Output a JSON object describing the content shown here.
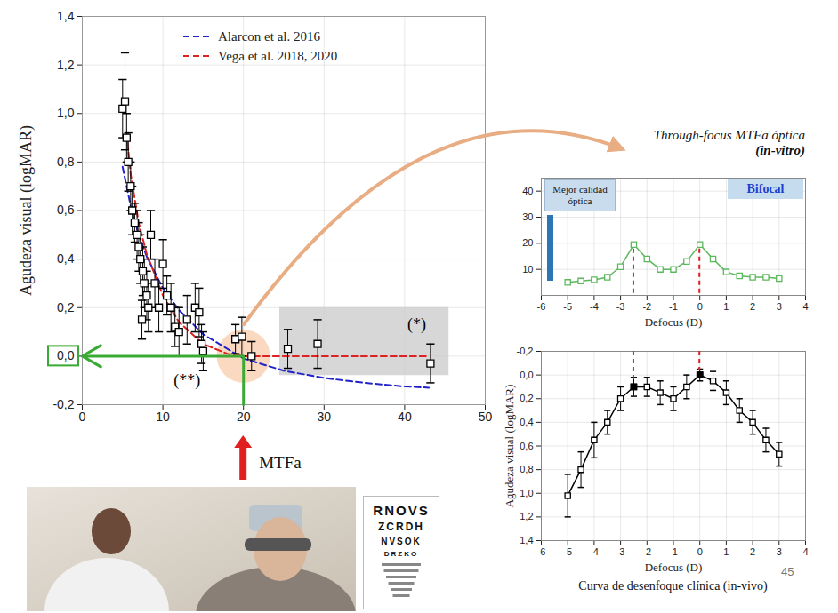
{
  "chart_data": [
    {
      "type": "scatter",
      "ylabel": "Agudeza visual (logMAR)",
      "xlabel": "MTFa",
      "xlim": [
        0,
        50
      ],
      "xticks": [
        0,
        10,
        20,
        30,
        40,
        50
      ],
      "ylim": [
        -0.2,
        1.4
      ],
      "yticks": [
        {
          "value": -0.2,
          "label": "-0,2"
        },
        {
          "value": 0,
          "label": "0,0"
        },
        {
          "value": 0.2,
          "label": "0,2"
        },
        {
          "value": 0.4,
          "label": "0,4"
        },
        {
          "value": 0.6,
          "label": "0,6"
        },
        {
          "value": 0.8,
          "label": "0,8"
        },
        {
          "value": 1.0,
          "label": "1,0"
        },
        {
          "value": 1.2,
          "label": "1,2"
        },
        {
          "value": 1.4,
          "label": "1,4"
        }
      ],
      "grid": true,
      "legend": "top",
      "series": [
        {
          "name": "Alarcon et al. 2016",
          "type": "line",
          "color": "#2222cc",
          "line_style": "dashed",
          "x": [
            5,
            6,
            7,
            8,
            10,
            12,
            15,
            20,
            25,
            30,
            35,
            40,
            43
          ],
          "values": [
            0.78,
            0.62,
            0.5,
            0.41,
            0.28,
            0.19,
            0.09,
            -0.01,
            -0.06,
            -0.09,
            -0.11,
            -0.125,
            -0.13
          ]
        },
        {
          "name": "Vega et al. 2018, 2020",
          "type": "line",
          "color": "#dd2222",
          "line_style": "dashed",
          "x": [
            5.5,
            6,
            7,
            8,
            10,
            12,
            15,
            18,
            20,
            25,
            30,
            35,
            43
          ],
          "values": [
            0.92,
            0.75,
            0.55,
            0.42,
            0.25,
            0.14,
            0.05,
            0.01,
            0,
            0,
            0,
            0,
            0
          ]
        },
        {
          "type": "scatter",
          "color": "#000000",
          "marker": "square",
          "x": [
            5,
            5.3,
            5.5,
            5.7,
            6,
            6.2,
            6.5,
            6.8,
            7,
            7.2,
            7.4,
            7.5,
            7.7,
            8,
            8.2,
            8.5,
            9,
            9.5,
            10,
            10.5,
            11,
            11.5,
            12,
            13,
            14,
            14.5,
            14.8,
            15,
            19,
            19.8,
            21,
            25.5,
            29.2,
            43.2
          ],
          "values": [
            1.02,
            1.05,
            0.9,
            0.8,
            0.7,
            0.6,
            0.55,
            0.5,
            0.45,
            0.4,
            0.15,
            0.35,
            0.3,
            0.25,
            0.2,
            0.5,
            0.3,
            0.2,
            0.38,
            0.25,
            0.2,
            0.12,
            0.1,
            0.15,
            0.2,
            0.18,
            0.05,
            0.02,
            0.07,
            0.08,
            0.0,
            0.03,
            0.05,
            -0.03
          ],
          "errors": [
            0.12,
            0.2,
            0.1,
            0.12,
            0.1,
            0.1,
            0.08,
            0.1,
            0.1,
            0.1,
            0.08,
            0.1,
            0.1,
            0.1,
            0.1,
            0.1,
            0.1,
            0.1,
            0.1,
            0.08,
            0.1,
            0.08,
            0.1,
            0.1,
            0.1,
            0.1,
            0.08,
            0.08,
            0.06,
            0.08,
            0.06,
            0.08,
            0.1,
            0.08
          ]
        }
      ],
      "reference_point": {
        "x": 20,
        "y": 0
      },
      "shaded_region": {
        "x": [
          24.5,
          45.5
        ],
        "y": [
          -0.08,
          0.2
        ]
      },
      "annotations": [
        {
          "text": "(**)",
          "x": 13,
          "y": -0.1
        },
        {
          "text": "(*)",
          "x": 41.5,
          "y": 0.13
        }
      ]
    },
    {
      "type": "line",
      "title": "Through-focus MTFa óptica",
      "subtitle": "(in-vitro)",
      "xlabel": "Defocus (D)",
      "xlim": [
        -6,
        4
      ],
      "xticks": [
        -6,
        -5,
        -4,
        -3,
        -2,
        -1,
        0,
        1,
        2,
        3,
        4
      ],
      "ylim": [
        0,
        45
      ],
      "yticks": [
        10,
        20,
        30,
        40
      ],
      "grid": true,
      "series": [
        {
          "type": "line",
          "color": "#5cb85c",
          "marker": "square",
          "x": [
            -5,
            -4.5,
            -4,
            -3.5,
            -3,
            -2.5,
            -2,
            -1.5,
            -1,
            -0.5,
            0,
            0.5,
            1,
            1.5,
            2,
            2.5,
            3
          ],
          "values": [
            5,
            5.5,
            6,
            7,
            11,
            19.5,
            14,
            10,
            10,
            13,
            19.5,
            14,
            9,
            7.5,
            7,
            7,
            6.5
          ]
        }
      ],
      "annotations": [
        {
          "text": "Mejor calidad óptica"
        },
        {
          "text": "Bifocal"
        }
      ]
    },
    {
      "type": "line",
      "caption": "Curva de desenfoque clínica (in-vivo)",
      "ylabel": "Agudeza visual (logMAR)",
      "xlabel": "Defocus (D)",
      "xlim": [
        -6,
        4
      ],
      "xticks": [
        -6,
        -5,
        -4,
        -3,
        -2,
        -1,
        0,
        1,
        2,
        3,
        4
      ],
      "ylim": [
        1.4,
        -0.2
      ],
      "yticks": [
        {
          "value": -0.2,
          "label": "-0,2"
        },
        {
          "value": 0,
          "label": "0,0"
        },
        {
          "value": 0.2,
          "label": "0,2"
        },
        {
          "value": 0.4,
          "label": "0,4"
        },
        {
          "value": 0.6,
          "label": "0,6"
        },
        {
          "value": 0.8,
          "label": "0,8"
        },
        {
          "value": 1.0,
          "label": "1,0"
        },
        {
          "value": 1.2,
          "label": "1,2"
        },
        {
          "value": 1.4,
          "label": "1,4"
        }
      ],
      "grid": true,
      "series": [
        {
          "type": "line",
          "color": "#000000",
          "marker": "square",
          "x": [
            -5,
            -4.5,
            -4,
            -3.5,
            -3,
            -2.5,
            -2,
            -1.5,
            -1,
            -0.5,
            0,
            0.5,
            1,
            1.5,
            2,
            2.5,
            3
          ],
          "values": [
            1.02,
            0.8,
            0.55,
            0.4,
            0.2,
            0.1,
            0.1,
            0.15,
            0.2,
            0.1,
            0.0,
            0.05,
            0.15,
            0.3,
            0.4,
            0.55,
            0.67
          ],
          "errors": [
            0.18,
            0.15,
            0.15,
            0.1,
            0.1,
            0.08,
            0.08,
            0.1,
            0.1,
            0.1,
            0.05,
            0.08,
            0.1,
            0.1,
            0.1,
            0.1,
            0.1
          ]
        }
      ],
      "highlight_x": [
        -2.5,
        0
      ],
      "annotations": [
        {
          "text": "45"
        }
      ]
    }
  ],
  "eye_chart": {
    "rows": [
      "RNOVS",
      "ZCRDH",
      "NVSOK",
      "DRZKO"
    ]
  }
}
